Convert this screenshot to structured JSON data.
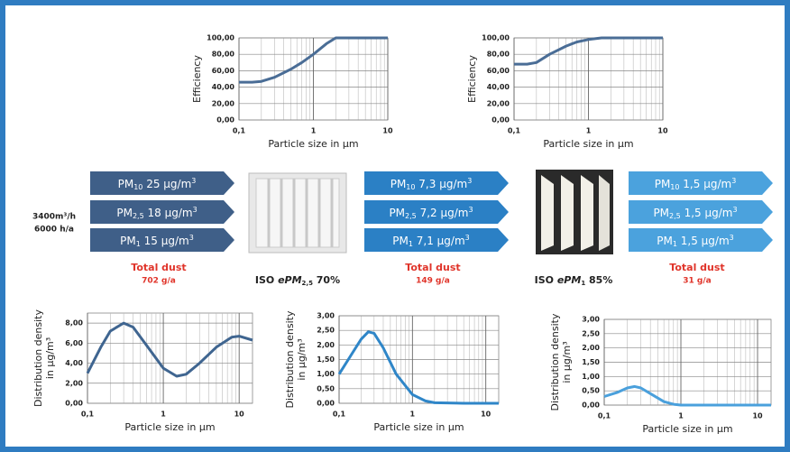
{
  "chart_data": [
    {
      "type": "line",
      "y_label": [
        "Efficiency"
      ],
      "x_label": "Particle size in µm",
      "log_x": true,
      "grid": true,
      "xlim": [
        0.1,
        10
      ],
      "xticks": [
        {
          "value": 0.1,
          "label": "0,1"
        },
        1,
        10
      ],
      "minor_xticks": [
        0.2,
        0.3,
        0.4,
        0.5,
        0.6,
        0.7,
        0.8,
        0.9,
        2,
        3,
        4,
        5,
        6,
        7,
        8,
        9
      ],
      "ylim": [
        0,
        100
      ],
      "yticks": [
        {
          "value": 0,
          "label": "0,00"
        },
        {
          "value": 20,
          "label": "20,00"
        },
        {
          "value": 40,
          "label": "40,00"
        },
        {
          "value": 60,
          "label": "60,00"
        },
        {
          "value": 80,
          "label": "80,00"
        },
        {
          "value": 100,
          "label": "100,00"
        }
      ],
      "series": [
        {
          "color": "#4a6d96",
          "x": [
            0.1,
            0.15,
            0.2,
            0.3,
            0.5,
            0.7,
            1,
            1.5,
            2,
            3,
            5,
            10
          ],
          "values": [
            46,
            46,
            47,
            52,
            62,
            70,
            80,
            93,
            100,
            100,
            100,
            100
          ]
        }
      ]
    },
    {
      "type": "line",
      "y_label": [
        "Efficiency"
      ],
      "x_label": "Particle size in µm",
      "log_x": true,
      "grid": true,
      "xlim": [
        0.1,
        10
      ],
      "xticks": [
        {
          "value": 0.1,
          "label": "0,1"
        },
        1,
        10
      ],
      "minor_xticks": [
        0.2,
        0.3,
        0.4,
        0.5,
        0.6,
        0.7,
        0.8,
        0.9,
        2,
        3,
        4,
        5,
        6,
        7,
        8,
        9
      ],
      "ylim": [
        0,
        100
      ],
      "yticks": [
        {
          "value": 0,
          "label": "0,00"
        },
        {
          "value": 20,
          "label": "20,00"
        },
        {
          "value": 40,
          "label": "40,00"
        },
        {
          "value": 60,
          "label": "60,00"
        },
        {
          "value": 80,
          "label": "80,00"
        },
        {
          "value": 100,
          "label": "100,00"
        }
      ],
      "series": [
        {
          "color": "#4a6d96",
          "x": [
            0.1,
            0.15,
            0.2,
            0.3,
            0.5,
            0.7,
            1,
            1.5,
            2,
            5,
            10
          ],
          "values": [
            68,
            68,
            70,
            80,
            90,
            95,
            98,
            100,
            100,
            100,
            100
          ]
        }
      ]
    },
    {
      "type": "line",
      "y_label": [
        "Distribution density",
        "in µg/m³"
      ],
      "x_label": "Particle size in µm",
      "log_x": true,
      "grid": true,
      "xlim": [
        0.1,
        15
      ],
      "xticks": [
        {
          "value": 0.1,
          "label": "0,1"
        },
        1,
        10
      ],
      "minor_xticks": [
        0.2,
        0.3,
        0.4,
        0.5,
        0.6,
        0.7,
        0.8,
        0.9,
        2,
        3,
        4,
        5,
        6,
        7,
        8,
        9
      ],
      "ylim": [
        0,
        9
      ],
      "yticks": [
        {
          "value": 0,
          "label": "0,00"
        },
        {
          "value": 2,
          "label": "2,00"
        },
        {
          "value": 4,
          "label": "4,00"
        },
        {
          "value": 6,
          "label": "6,00"
        },
        {
          "value": 8,
          "label": "8,00"
        }
      ],
      "series": [
        {
          "color": "#3f6590",
          "x": [
            0.1,
            0.15,
            0.2,
            0.3,
            0.4,
            0.6,
            1,
            1.5,
            2,
            3,
            5,
            8,
            10,
            15
          ],
          "values": [
            3,
            5.6,
            7.2,
            8,
            7.6,
            5.8,
            3.5,
            2.7,
            2.9,
            4,
            5.6,
            6.6,
            6.7,
            6.3
          ]
        }
      ]
    },
    {
      "type": "line",
      "y_label": [
        "Distribution density",
        "in µg/m³"
      ],
      "x_label": "Particle size in µm",
      "log_x": true,
      "grid": true,
      "xlim": [
        0.1,
        15
      ],
      "xticks": [
        {
          "value": 0.1,
          "label": "0,1"
        },
        1,
        10
      ],
      "minor_xticks": [
        0.2,
        0.3,
        0.4,
        0.5,
        0.6,
        0.7,
        0.8,
        0.9,
        2,
        3,
        4,
        5,
        6,
        7,
        8,
        9
      ],
      "ylim": [
        0,
        3
      ],
      "yticks": [
        {
          "value": 0,
          "label": "0,00"
        },
        {
          "value": 0.5,
          "label": "0,50"
        },
        {
          "value": 1,
          "label": "1,00"
        },
        {
          "value": 1.5,
          "label": "1,50"
        },
        {
          "value": 2,
          "label": "2,00"
        },
        {
          "value": 2.5,
          "label": "2,50"
        },
        {
          "value": 3,
          "label": "3,00"
        }
      ],
      "series": [
        {
          "color": "#2f86c8",
          "x": [
            0.1,
            0.15,
            0.2,
            0.25,
            0.3,
            0.4,
            0.6,
            1,
            1.5,
            2,
            5,
            15
          ],
          "values": [
            1,
            1.7,
            2.2,
            2.45,
            2.4,
            1.9,
            1,
            0.3,
            0.08,
            0.02,
            0,
            0
          ]
        }
      ]
    },
    {
      "type": "line",
      "y_label": [
        "Distribution density",
        "in µg/m³"
      ],
      "x_label": "Particle size in µm",
      "log_x": true,
      "grid": true,
      "xlim": [
        0.1,
        15
      ],
      "xticks": [
        {
          "value": 0.1,
          "label": "0,1"
        },
        1,
        10
      ],
      "minor_xticks": [
        0.2,
        0.3,
        0.4,
        0.5,
        0.6,
        0.7,
        0.8,
        0.9,
        2,
        3,
        4,
        5,
        6,
        7,
        8,
        9
      ],
      "ylim": [
        0,
        3
      ],
      "yticks": [
        {
          "value": 0,
          "label": "0,00"
        },
        {
          "value": 0.5,
          "label": "0,50"
        },
        {
          "value": 1,
          "label": "1,00"
        },
        {
          "value": 1.5,
          "label": "1,50"
        },
        {
          "value": 2,
          "label": "2,00"
        },
        {
          "value": 2.5,
          "label": "2,50"
        },
        {
          "value": 3,
          "label": "3,00"
        }
      ],
      "series": [
        {
          "color": "#4aa0dc",
          "x": [
            0.1,
            0.15,
            0.2,
            0.25,
            0.3,
            0.4,
            0.6,
            0.8,
            1,
            2,
            15
          ],
          "values": [
            0.3,
            0.45,
            0.6,
            0.65,
            0.6,
            0.4,
            0.12,
            0.03,
            0,
            0,
            0
          ]
        }
      ]
    }
  ],
  "flow": {
    "input": [
      "3400m³/h",
      "6000 h/a"
    ],
    "stages": [
      {
        "color": "#3f5f88",
        "rows": [
          {
            "pm": "PM",
            "sub": "10",
            "text": " 25 µg/m",
            "sup": "3"
          },
          {
            "pm": "PM",
            "sub": "2,5",
            "text": " 18 µg/m",
            "sup": "3"
          },
          {
            "pm": "PM",
            "sub": "1",
            "text": " 15 µg/m",
            "sup": "3"
          }
        ],
        "total": "Total dust",
        "amount": "702 g/a"
      },
      {
        "color": "#2b80c5",
        "rows": [
          {
            "pm": "PM",
            "sub": "10",
            "text": " 7,3 µg/m",
            "sup": "3"
          },
          {
            "pm": "PM",
            "sub": "2,5",
            "text": " 7,2 µg/m",
            "sup": "3"
          },
          {
            "pm": "PM",
            "sub": "1",
            "text": " 7,1 µg/m",
            "sup": "3"
          }
        ],
        "total": "Total dust",
        "amount": "149 g/a"
      },
      {
        "color": "#4ba2dd",
        "rows": [
          {
            "pm": "PM",
            "sub": "10",
            "text": " 1,5 µg/m",
            "sup": "3"
          },
          {
            "pm": "PM",
            "sub": "2,5",
            "text": " 1,5 µg/m",
            "sup": "3"
          },
          {
            "pm": "PM",
            "sub": "1",
            "text": " 1,5 µg/m",
            "sup": "3"
          }
        ],
        "total": "Total dust",
        "amount": "31 g/a"
      }
    ],
    "filters": [
      {
        "prefix": "ISO ",
        "e": "e",
        "pm": "PM",
        "sub": "2,5",
        "suffix": " 70%"
      },
      {
        "prefix": "ISO ",
        "e": "e",
        "pm": "PM",
        "sub": "1",
        "suffix": " 85%"
      }
    ]
  }
}
